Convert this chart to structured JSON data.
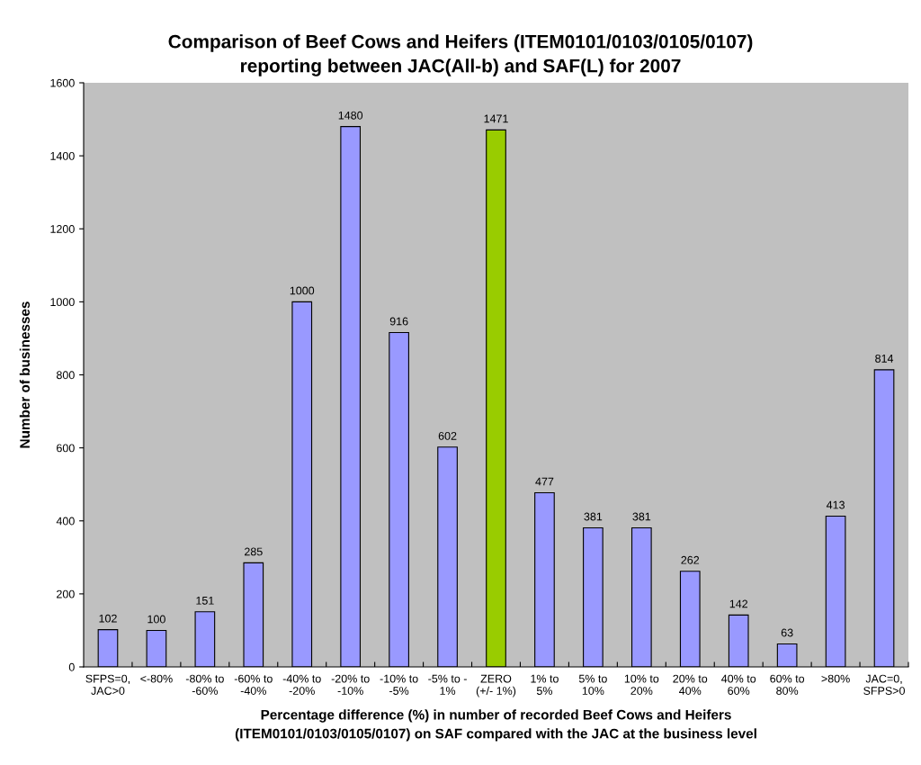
{
  "chart_data": {
    "type": "bar",
    "title": "Comparison of Beef Cows and Heifers (ITEM0101/0103/0105/0107)\nreporting between JAC(All-b) and SAF(L) for 2007",
    "xlabel": "Percentage difference (%) in number of recorded Beef Cows and Heifers\n(ITEM0101/0103/0105/0107) on SAF compared with the JAC at the business level",
    "ylabel": "Number of businesses",
    "categories": [
      "SFPS=0,\nJAC>0",
      "<-80%",
      "-80% to\n-60%",
      "-60% to\n-40%",
      "-40% to\n-20%",
      "-20% to\n-10%",
      "-10% to\n-5%",
      "-5% to -\n1%",
      "ZERO\n(+/- 1%)",
      "1% to\n5%",
      "5% to\n10%",
      "10% to\n20%",
      "20% to\n40%",
      "40% to\n60%",
      "60% to\n80%",
      ">80%",
      "JAC=0,\nSFPS>0"
    ],
    "values": [
      102,
      100,
      151,
      285,
      1000,
      1480,
      916,
      602,
      1471,
      477,
      381,
      381,
      262,
      142,
      63,
      413,
      814
    ],
    "colors": [
      "#9999ff",
      "#9999ff",
      "#9999ff",
      "#9999ff",
      "#9999ff",
      "#9999ff",
      "#9999ff",
      "#9999ff",
      "#99cc00",
      "#9999ff",
      "#9999ff",
      "#9999ff",
      "#9999ff",
      "#9999ff",
      "#9999ff",
      "#9999ff",
      "#9999ff"
    ],
    "ylim": [
      0,
      1600
    ],
    "yticks": [
      0,
      200,
      400,
      600,
      800,
      1000,
      1200,
      1400,
      1600
    ],
    "data_labels": true,
    "grid": false,
    "legend": false
  }
}
